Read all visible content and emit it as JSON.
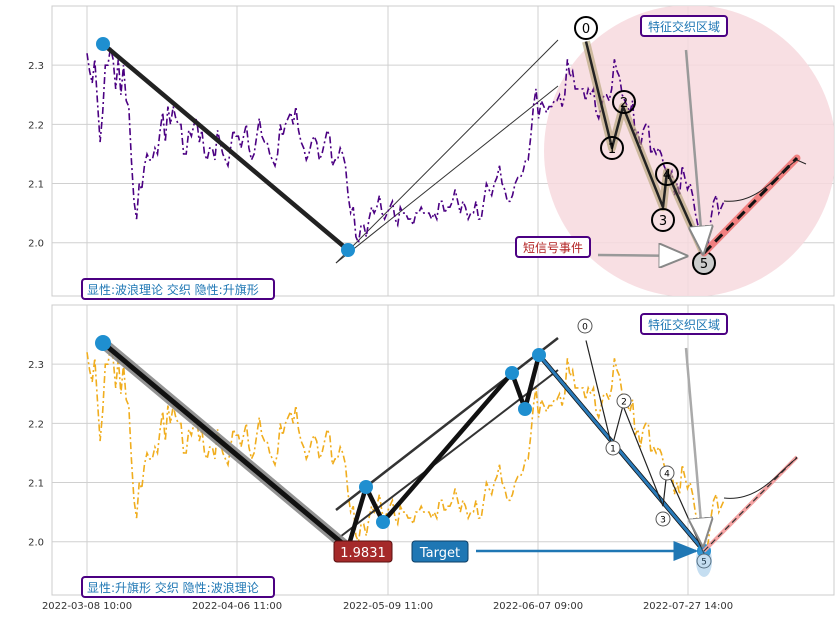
{
  "chart_data": [
    {
      "type": "line",
      "panel": "top",
      "ylim": [
        1.91,
        2.4
      ],
      "yticks": [
        2.0,
        2.1,
        2.2,
        2.3
      ],
      "grid": true,
      "colors": {
        "price": "#4b0082",
        "zone": "#f7d9de",
        "label_border": "#4b0082",
        "label_text": "#1f77b4",
        "event_text": "#b22222"
      },
      "pattern_label": "显性:波浪理论 交织 隐性:升旗形",
      "zone_label": "特征交织区域",
      "event_label": "短信号事件",
      "wave_labels": [
        "0",
        "1",
        "2",
        "3",
        "4",
        "5"
      ],
      "series": [
        {
          "values": [
            2.32,
            2.29,
            2.27,
            2.31,
            2.24,
            2.17,
            2.22,
            2.3,
            2.3,
            2.33,
            2.31,
            2.26,
            2.31,
            2.25,
            2.3,
            2.24,
            2.23,
            2.14,
            2.07,
            2.04,
            2.1,
            2.09,
            2.13,
            2.15,
            2.14,
            2.14,
            2.16,
            2.15,
            2.19,
            2.22,
            2.17,
            2.23,
            2.2,
            2.23,
            2.21,
            2.2,
            2.2,
            2.15,
            2.15,
            2.19,
            2.18,
            2.2,
            2.21,
            2.17,
            2.19,
            2.15,
            2.14,
            2.16,
            2.16,
            2.14,
            2.19,
            2.17,
            2.15,
            2.14,
            2.13,
            2.16,
            2.19,
            2.18,
            2.18,
            2.16,
            2.18,
            2.2,
            2.16,
            2.14,
            2.15,
            2.18,
            2.21,
            2.18,
            2.17,
            2.17,
            2.15,
            2.14,
            2.13,
            2.15,
            2.2,
            2.18,
            2.2,
            2.21,
            2.22,
            2.2,
            2.23,
            2.19,
            2.17,
            2.16,
            2.14,
            2.15,
            2.17,
            2.18,
            2.17,
            2.14,
            2.15,
            2.17,
            2.19,
            2.18,
            2.13,
            2.14,
            2.14,
            2.16,
            2.15,
            2.13,
            2.08,
            2.05,
            2.06,
            2.01,
            2.0,
            2.03,
            2.03,
            2.01,
            2.04,
            2.06,
            2.05,
            2.06,
            2.08,
            2.05,
            2.04,
            2.05,
            2.06,
            2.07,
            2.04,
            2.03,
            2.06,
            2.05,
            2.05,
            2.04,
            2.04,
            2.03,
            2.05,
            2.05,
            2.06,
            2.05,
            2.05,
            2.05,
            2.04,
            2.05,
            2.04,
            2.07,
            2.07,
            2.05,
            2.06,
            2.06,
            2.07,
            2.09,
            2.07,
            2.05,
            2.07,
            2.06,
            2.04,
            2.05,
            2.05,
            2.07,
            2.04,
            2.04,
            2.07,
            2.1,
            2.09,
            2.08,
            2.1,
            2.11,
            2.13,
            2.1,
            2.09,
            2.07,
            2.07,
            2.08,
            2.1,
            2.11,
            2.11,
            2.12,
            2.14,
            2.14,
            2.18,
            2.23,
            2.26,
            2.21,
            2.24,
            2.23,
            2.22,
            2.23,
            2.23,
            2.24,
            2.24,
            2.25,
            2.23,
            2.25,
            2.31,
            2.28,
            2.29,
            2.26,
            2.26,
            2.26,
            2.26,
            2.24,
            2.26,
            2.25,
            2.26,
            2.22,
            2.21,
            2.23,
            2.25,
            2.25,
            2.24,
            2.26,
            2.31,
            2.29,
            2.28,
            2.25,
            2.24,
            2.23,
            2.22,
            2.24,
            2.18,
            2.19,
            2.16,
            2.19,
            2.2,
            2.2,
            2.15,
            2.16,
            2.15,
            2.16,
            2.15,
            2.13,
            2.12,
            2.11,
            2.12,
            2.08,
            2.1,
            2.08,
            2.13,
            2.11,
            2.09,
            2.1,
            2.08,
            2.05,
            2.03,
            2.02,
            2.0,
            1.98,
            2.0,
            2.04,
            2.07,
            2.08,
            2.05,
            2.06,
            2.07
          ]
        },
        {
          "name": "wave",
          "values": [
            2.34,
            2.16,
            2.23,
            2.06,
            2.12,
            1.98
          ]
        }
      ]
    },
    {
      "type": "line",
      "panel": "bottom",
      "ylim": [
        1.91,
        2.4
      ],
      "yticks": [
        2.0,
        2.1,
        2.2,
        2.3
      ],
      "grid": true,
      "colors": {
        "price": "#f0ad1e",
        "label_border": "#4b0082",
        "label_text": "#1f77b4",
        "price_tag": "#a52a2a",
        "target_tag": "#1f77b4"
      },
      "pattern_label": "显性:升旗形 交织 隐性:波浪理论",
      "zone_label": "特征交织区域",
      "price_tag": "1.9831",
      "target_label": "Target",
      "wave_labels": [
        "0",
        "1",
        "2",
        "3",
        "4",
        "5"
      ],
      "x_tick_labels": [
        "2022-03-08 10:00",
        "2022-04-06 11:00",
        "2022-05-09 11:00",
        "2022-06-07 09:00",
        "2022-07-27 14:00"
      ]
    }
  ]
}
